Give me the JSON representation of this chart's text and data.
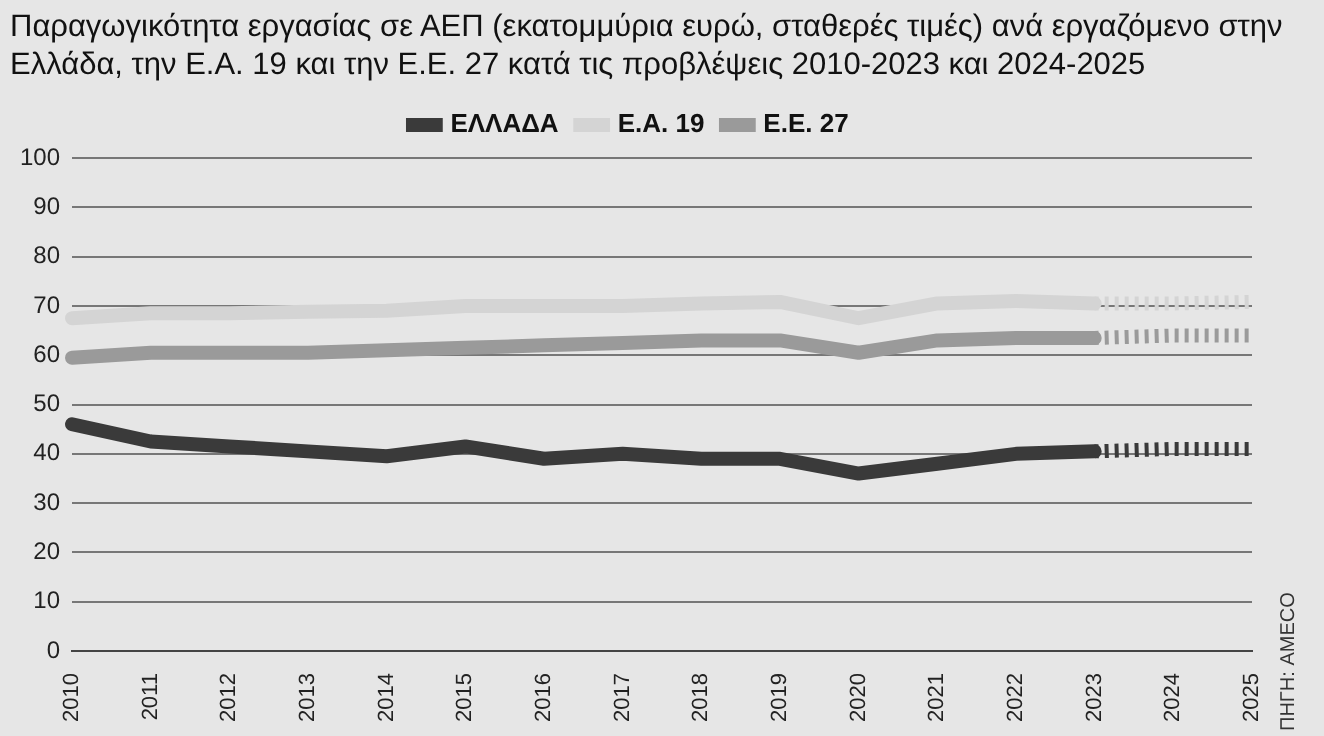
{
  "chart_data": {
    "type": "line",
    "title": "Παραγωγικότητα εργασίας σε ΑΕΠ (εκατομμύρια ευρώ, σταθερές τιμές) ανά εργαζόμενο στην Ελλάδα, την Ε.Α. 19 και την Ε.Ε. 27 κατά τις προβλέψεις 2010-2023 και 2024-2025",
    "categories": [
      "2010",
      "2011",
      "2012",
      "2013",
      "2014",
      "2015",
      "2016",
      "2017",
      "2018",
      "2019",
      "2020",
      "2021",
      "2022",
      "2023",
      "2024",
      "2025"
    ],
    "ylim": [
      0,
      100
    ],
    "yticks": [
      0,
      10,
      20,
      30,
      40,
      50,
      60,
      70,
      80,
      90,
      100
    ],
    "grid": "y",
    "legend": "top",
    "marker": "none",
    "series": [
      {
        "name": "ΕΛΛΑΔΑ",
        "color": "#3a3a3a",
        "values": [
          46,
          42.5,
          41.5,
          40.5,
          39.5,
          41.5,
          39,
          40,
          39,
          39,
          36,
          38,
          40,
          40.5,
          null,
          null
        ]
      },
      {
        "name": "Ε.Α. 19",
        "color": "#d4d4d4",
        "values": [
          67.5,
          68.5,
          68.5,
          68.8,
          69,
          70,
          70,
          70,
          70.5,
          70.8,
          67.5,
          70.5,
          71,
          70.5,
          null,
          null
        ]
      },
      {
        "name": "Ε.Ε. 27",
        "color": "#9a9a9a",
        "values": [
          59.5,
          60.5,
          60.5,
          60.5,
          61,
          61.5,
          62,
          62.5,
          63,
          63,
          60.5,
          63,
          63.5,
          63.5,
          null,
          null
        ]
      },
      {
        "color": "#3a3a3a",
        "line_style": "dashed",
        "values": [
          null,
          null,
          null,
          null,
          null,
          null,
          null,
          null,
          null,
          null,
          null,
          null,
          null,
          40.5,
          41,
          41
        ]
      },
      {
        "color": "#d4d4d4",
        "line_style": "dashed",
        "values": [
          null,
          null,
          null,
          null,
          null,
          null,
          null,
          null,
          null,
          null,
          null,
          null,
          null,
          70.5,
          70.5,
          70.8
        ]
      },
      {
        "color": "#9a9a9a",
        "line_style": "dashed",
        "values": [
          null,
          null,
          null,
          null,
          null,
          null,
          null,
          null,
          null,
          null,
          null,
          null,
          null,
          63.5,
          64,
          64
        ]
      }
    ],
    "annotations": [
      "ΠΗΓΗ: AMECO"
    ]
  }
}
